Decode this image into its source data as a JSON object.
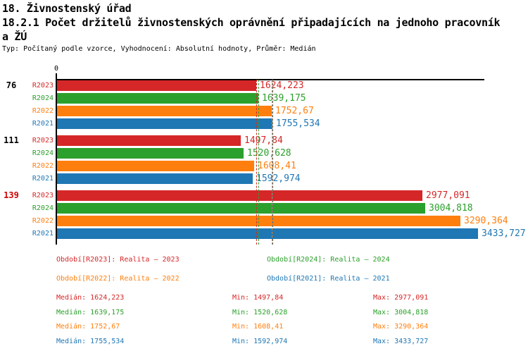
{
  "header": {
    "line1": "18. Živnostenský úřad",
    "line2": "18.2.1 Počet držitelů živnostenských oprávnění připadajících na jednoho pracovník",
    "line3": "a ŽÚ",
    "meta": "Typ: Počítaný podle vzorce, Vyhodnocení: Absolutní hodnoty, Průměr: Medián"
  },
  "colors": {
    "series": {
      "R2023": "#d62728",
      "R2024": "#2ca02c",
      "R2022": "#ff7f0e",
      "R2021": "#1f77b4"
    },
    "axis": "#000000",
    "text": "#000000",
    "group_label_normal": "#000000",
    "group_label_highlight": "#d10000"
  },
  "chart_data": {
    "type": "bar",
    "orientation": "horizontal",
    "axis": {
      "zero_label": "0",
      "xlim": [
        0,
        3490
      ],
      "grid": false
    },
    "series_order": [
      "R2023",
      "R2024",
      "R2022",
      "R2021"
    ],
    "groups": [
      {
        "label": "76",
        "label_style": "normal",
        "bars": [
          {
            "series": "R2023",
            "value": 1624.223,
            "display": "1624,223"
          },
          {
            "series": "R2024",
            "value": 1639.175,
            "display": "1639,175"
          },
          {
            "series": "R2022",
            "value": 1752.67,
            "display": "1752,67"
          },
          {
            "series": "R2021",
            "value": 1755.534,
            "display": "1755,534"
          }
        ]
      },
      {
        "label": "111",
        "label_style": "normal",
        "bars": [
          {
            "series": "R2023",
            "value": 1497.84,
            "display": "1497,84"
          },
          {
            "series": "R2024",
            "value": 1520.628,
            "display": "1520,628"
          },
          {
            "series": "R2022",
            "value": 1608.41,
            "display": "1608,41"
          },
          {
            "series": "R2021",
            "value": 1592.974,
            "display": "1592,974"
          }
        ]
      },
      {
        "label": "139",
        "label_style": "highlight",
        "bars": [
          {
            "series": "R2023",
            "value": 2977.091,
            "display": "2977,091"
          },
          {
            "series": "R2024",
            "value": 3004.818,
            "display": "3004,818"
          },
          {
            "series": "R2022",
            "value": 3290.364,
            "display": "3290,364"
          },
          {
            "series": "R2021",
            "value": 3433.727,
            "display": "3433,727"
          }
        ]
      }
    ],
    "median_lines": [
      {
        "series": "R2023",
        "value": 1624.223
      },
      {
        "series": "R2024",
        "value": 1639.175
      },
      {
        "series": "R2022",
        "value": 1752.67
      },
      {
        "series": "R2021",
        "value": 1755.534
      }
    ]
  },
  "legend": [
    {
      "series": "R2023",
      "text": "Období[R2023]: Realita – 2023"
    },
    {
      "series": "R2024",
      "text": "Období[R2024]: Realita – 2024"
    },
    {
      "series": "R2022",
      "text": "Období[R2022]: Realita – 2022"
    },
    {
      "series": "R2021",
      "text": "Období[R2021]: Realita – 2021"
    }
  ],
  "stats_labels": {
    "median": "Medián",
    "min": "Min",
    "max": "Max"
  },
  "stats": [
    {
      "series": "R2023",
      "median": "1624,223",
      "min": "1497,84",
      "max": "2977,091"
    },
    {
      "series": "R2024",
      "median": "1639,175",
      "min": "1520,628",
      "max": "3004,818"
    },
    {
      "series": "R2022",
      "median": "1752,67",
      "min": "1608,41",
      "max": "3290,364"
    },
    {
      "series": "R2021",
      "median": "1755,534",
      "min": "1592,974",
      "max": "3433,727"
    }
  ]
}
